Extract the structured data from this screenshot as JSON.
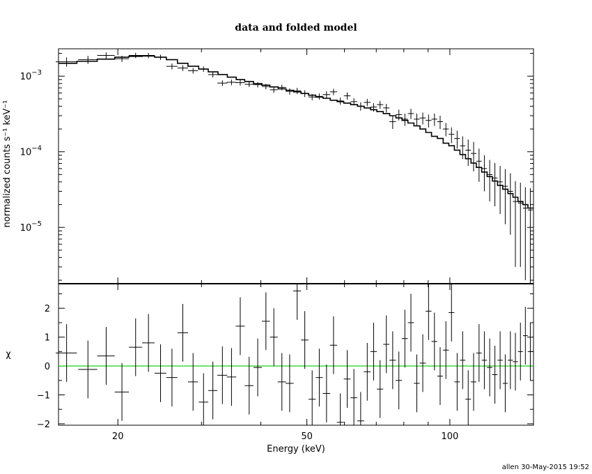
{
  "chart_data": [
    {
      "type": "scatter",
      "panel": "top",
      "title": "data and folded model",
      "xlabel": "",
      "ylabel": "normalized counts s⁻¹ keV⁻¹",
      "xscale": "log",
      "yscale": "log",
      "xlim": [
        15,
        150
      ],
      "ylim": [
        1.8e-06,
        0.0023
      ],
      "yticks": [
        {
          "value": 0.001,
          "base": "10",
          "exp": "−3"
        },
        {
          "value": 0.0001,
          "base": "10",
          "exp": "−4"
        },
        {
          "value": 1e-05,
          "base": "10",
          "exp": "−5"
        }
      ],
      "series": [
        {
          "kind": "data",
          "x": [
            15.6,
            17.3,
            18.9,
            20.4,
            21.8,
            23.2,
            24.6,
            26.0,
            27.4,
            28.8,
            30.3,
            31.7,
            33.2,
            34.7,
            36.2,
            37.8,
            39.4,
            41.0,
            42.6,
            44.3,
            46.0,
            47.7,
            49.5,
            51.3,
            53.1,
            55.0,
            56.9,
            58.8,
            60.8,
            62.8,
            64.9,
            67.0,
            69.1,
            71.3,
            73.5,
            75.8,
            78.1,
            80.4,
            82.8,
            85.2,
            87.7,
            90.2,
            92.8,
            95.4,
            98.1,
            100.8,
            103.6,
            106.4,
            109.3,
            112.2,
            115.2,
            118.2,
            121.3,
            124.4,
            127.6,
            130.8,
            134.1,
            137.4,
            140.8,
            144.2,
            147.7
          ],
          "y": [
            0.00155,
            0.00165,
            0.00188,
            0.0017,
            0.00188,
            0.00188,
            0.00178,
            0.00135,
            0.00128,
            0.00118,
            0.00124,
            0.00105,
            0.00081,
            0.00083,
            0.00082,
            0.00078,
            0.00077,
            0.00073,
            0.00066,
            0.00071,
            0.00063,
            0.00064,
            0.00059,
            0.00053,
            0.00054,
            0.00057,
            0.00062,
            0.00047,
            0.00055,
            0.00046,
            0.0004,
            0.00045,
            0.00039,
            0.00042,
            0.00038,
            0.00025,
            0.00031,
            0.00027,
            0.00032,
            0.00027,
            0.00028,
            0.00026,
            0.00027,
            0.00025,
            0.0002,
            0.00017,
            0.00015,
            0.00012,
            0.000105,
            9.5e-05,
            7.5e-05,
            6e-05,
            5e-05,
            4.5e-05,
            4e-05,
            3.5e-05,
            3e-05,
            2.2e-05,
            2.1e-05,
            1.8e-05,
            1.7e-05
          ],
          "xerr": [
            0.8,
            0.8,
            0.8,
            0.7,
            0.7,
            0.7,
            0.7,
            0.7,
            0.7,
            0.7,
            0.7,
            0.7,
            0.8,
            0.8,
            0.8,
            0.8,
            0.8,
            0.8,
            0.8,
            0.9,
            0.9,
            0.9,
            0.9,
            0.9,
            0.9,
            1.0,
            1.0,
            1.0,
            1.0,
            1.0,
            1.1,
            1.1,
            1.1,
            1.1,
            1.1,
            1.2,
            1.2,
            1.2,
            1.2,
            1.2,
            1.3,
            1.3,
            1.3,
            1.3,
            1.4,
            1.4,
            1.4,
            1.4,
            1.5,
            1.5,
            1.5,
            1.5,
            1.6,
            1.6,
            1.6,
            1.6,
            1.7,
            1.7,
            1.7,
            1.7,
            1.8
          ],
          "yerr": [
            0.00022,
            0.0002,
            0.00018,
            0.00016,
            0.00015,
            0.00015,
            0.00014,
            0.00012,
            0.00011,
            0.0001,
            0.0001,
            9e-05,
            7e-05,
            7e-05,
            7e-05,
            6e-05,
            6e-05,
            6e-05,
            6e-05,
            6e-05,
            6e-05,
            6e-05,
            6e-05,
            5e-05,
            5e-05,
            6e-05,
            6e-05,
            5e-05,
            6e-05,
            5e-05,
            5e-05,
            5e-05,
            5e-05,
            5e-05,
            5e-05,
            5e-05,
            5e-05,
            5e-05,
            5e-05,
            5e-05,
            5e-05,
            5e-05,
            5e-05,
            5e-05,
            4e-05,
            4e-05,
            4e-05,
            4e-05,
            4e-05,
            4e-05,
            3.5e-05,
            3e-05,
            2.8e-05,
            2.6e-05,
            2.5e-05,
            2.4e-05,
            2.2e-05,
            1.9e-05,
            1.8e-05,
            1.6e-05,
            1.6e-05
          ]
        },
        {
          "kind": "model",
          "x": [
            15.0,
            16.4,
            18.1,
            19.7,
            21.1,
            22.5,
            23.9,
            25.3,
            26.7,
            28.1,
            29.6,
            31.0,
            32.5,
            34.0,
            35.5,
            37.0,
            38.6,
            40.2,
            41.8,
            43.5,
            45.2,
            46.9,
            48.6,
            50.4,
            52.2,
            54.1,
            56.0,
            57.9,
            59.8,
            61.8,
            63.9,
            66.0,
            68.1,
            70.2,
            72.4,
            74.7,
            77.0,
            79.3,
            81.6,
            84.0,
            86.5,
            89.0,
            91.5,
            94.1,
            96.8,
            99.5,
            102.2,
            105.0,
            107.9,
            110.8,
            113.7,
            116.7,
            119.8,
            122.9,
            126.0,
            129.2,
            132.5,
            135.8,
            139.1,
            142.5,
            146.0,
            150.0
          ],
          "y": [
            0.00148,
            0.00157,
            0.00168,
            0.00178,
            0.00183,
            0.00185,
            0.00178,
            0.00165,
            0.00148,
            0.00135,
            0.00124,
            0.00114,
            0.00105,
            0.00097,
            0.0009,
            0.00085,
            0.0008,
            0.00076,
            0.00072,
            0.00068,
            0.00065,
            0.00062,
            0.00059,
            0.00056,
            0.00053,
            0.00051,
            0.00048,
            0.00046,
            0.00044,
            0.00042,
            0.0004,
            0.00038,
            0.00036,
            0.00034,
            0.00032,
            0.0003,
            0.00028,
            0.00026,
            0.00024,
            0.00022,
            0.0002,
            0.00018,
            0.00016,
            0.00015,
            0.00013,
            0.00012,
            0.000105,
            9.2e-05,
            8.1e-05,
            7.1e-05,
            6.2e-05,
            5.4e-05,
            4.7e-05,
            4.1e-05,
            3.6e-05,
            3.2e-05,
            2.8e-05,
            2.5e-05,
            2.2e-05,
            2e-05,
            1.8e-05,
            1.8e-05
          ]
        }
      ]
    },
    {
      "type": "scatter",
      "panel": "bottom",
      "xlabel": "Energy (keV)",
      "ylabel": "χ",
      "xscale": "log",
      "yscale": "linear",
      "xlim": [
        15,
        150
      ],
      "ylim": [
        -2.05,
        2.85
      ],
      "xticks": [
        {
          "value": 20,
          "label": "20"
        },
        {
          "value": 50,
          "label": "50"
        },
        {
          "value": 100,
          "label": "100"
        }
      ],
      "yticks": [
        {
          "value": 2,
          "label": "2"
        },
        {
          "value": 1,
          "label": "1"
        },
        {
          "value": 0,
          "label": "0"
        },
        {
          "value": -1,
          "label": "−1"
        },
        {
          "value": -2,
          "label": "−2"
        }
      ],
      "zero_line_color": "#00cc00",
      "series": [
        {
          "kind": "residuals",
          "x": [
            15.6,
            17.3,
            18.9,
            20.4,
            21.8,
            23.2,
            24.6,
            26.0,
            27.4,
            28.8,
            30.3,
            31.7,
            33.2,
            34.7,
            36.2,
            37.8,
            39.4,
            41.0,
            42.6,
            44.3,
            46.0,
            47.7,
            49.5,
            51.3,
            53.1,
            55.0,
            56.9,
            58.8,
            60.8,
            62.8,
            64.9,
            67.0,
            69.1,
            71.3,
            73.5,
            75.8,
            78.1,
            80.4,
            82.8,
            85.2,
            87.7,
            90.2,
            92.8,
            95.4,
            98.1,
            100.8,
            103.6,
            106.4,
            109.3,
            112.2,
            115.2,
            118.2,
            121.3,
            124.4,
            127.6,
            130.8,
            134.1,
            137.4,
            140.8,
            144.2,
            147.7
          ],
          "y": [
            0.45,
            -0.12,
            0.35,
            -0.9,
            0.65,
            0.8,
            -0.25,
            -0.4,
            1.15,
            -0.55,
            -1.25,
            -0.85,
            -0.32,
            -0.38,
            1.38,
            -0.68,
            -0.05,
            1.55,
            1.0,
            -0.55,
            -0.6,
            2.6,
            0.9,
            -1.15,
            -0.4,
            -0.95,
            0.72,
            -1.95,
            -0.45,
            -1.1,
            -1.9,
            -0.2,
            0.5,
            -0.8,
            0.75,
            0.2,
            -0.5,
            0.95,
            1.5,
            -0.6,
            0.1,
            1.9,
            0.85,
            -0.35,
            0.55,
            1.85,
            -0.55,
            0.2,
            -1.15,
            -0.55,
            0.45,
            0.2,
            -0.05,
            -0.3,
            0.2,
            -0.6,
            0.2,
            0.15,
            0.5,
            1.05,
            0.5
          ],
          "xerr": [
            0.8,
            0.8,
            0.8,
            0.7,
            0.7,
            0.7,
            0.7,
            0.7,
            0.7,
            0.7,
            0.7,
            0.7,
            0.8,
            0.8,
            0.8,
            0.8,
            0.8,
            0.8,
            0.8,
            0.9,
            0.9,
            0.9,
            0.9,
            0.9,
            0.9,
            1.0,
            1.0,
            1.0,
            1.0,
            1.0,
            1.1,
            1.1,
            1.1,
            1.1,
            1.1,
            1.2,
            1.2,
            1.2,
            1.2,
            1.2,
            1.3,
            1.3,
            1.3,
            1.3,
            1.4,
            1.4,
            1.4,
            1.4,
            1.5,
            1.5,
            1.5,
            1.5,
            1.6,
            1.6,
            1.6,
            1.6,
            1.7,
            1.7,
            1.7,
            1.7,
            1.8
          ],
          "yerr": [
            1,
            1,
            1,
            1,
            1,
            1,
            1,
            1,
            1,
            1,
            1,
            1,
            1,
            1,
            1,
            1,
            1,
            1,
            1,
            1,
            1,
            1,
            1,
            1,
            1,
            1,
            1,
            1,
            1,
            1,
            1,
            1,
            1,
            1,
            1,
            1,
            1,
            1,
            1,
            1,
            1,
            1,
            1,
            1,
            1,
            1,
            1,
            1,
            1,
            1,
            1,
            1,
            1,
            1,
            1,
            1,
            1,
            1,
            1,
            1,
            1
          ]
        }
      ]
    }
  ],
  "footer": "allen 30-May-2015 19:52",
  "colors": {
    "data": "#000000",
    "zero_line": "#00cc00",
    "background": "#ffffff"
  }
}
